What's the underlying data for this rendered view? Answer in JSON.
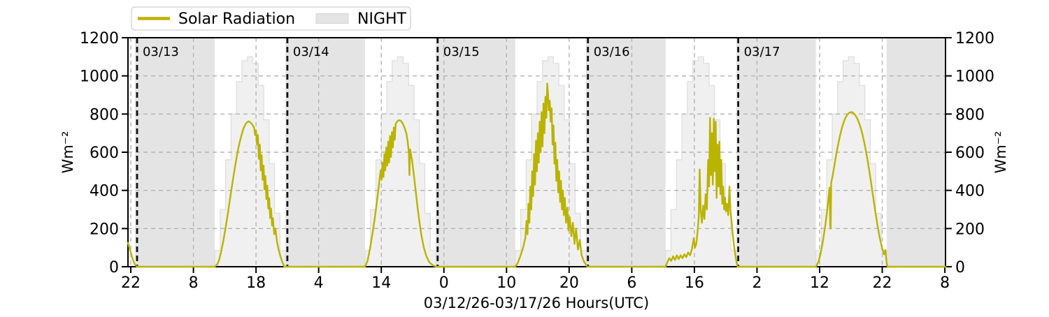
{
  "chart_data": {
    "type": "line",
    "title": "",
    "xlabel": "03/12/26-03/17/26  Hours(UTC)",
    "ylabel_left": "Wm⁻²",
    "ylabel_right": "Wm⁻²",
    "ylim": [
      0,
      1200
    ],
    "yticks": [
      0,
      200,
      400,
      600,
      800,
      1000,
      1200
    ],
    "grid": "dashed gray, both axes",
    "legend_position": "top-left above axes",
    "legend": [
      {
        "label": "Solar Radiation",
        "type": "line",
        "color": "#bab300"
      },
      {
        "label": "NIGHT",
        "type": "patch",
        "color": "#e4e4e4"
      }
    ],
    "colors": {
      "line": "#bab300",
      "night": "#e4e4e4",
      "clearsky_fill": "#f0f0f0",
      "clearsky_edge": "#dcdcdc",
      "grid": "#b3b3b3",
      "dateline": "#111111",
      "date_label": "#3d3d3d",
      "axis": "#000000"
    },
    "x_axis": {
      "unit": "hours since 03/12/26 22:00 UTC",
      "tmin": -0.45,
      "tmax": 130.1,
      "ticks": [
        {
          "t": 0,
          "label": "22"
        },
        {
          "t": 10,
          "label": "8"
        },
        {
          "t": 20,
          "label": "18"
        },
        {
          "t": 30,
          "label": "4"
        },
        {
          "t": 40,
          "label": "14"
        },
        {
          "t": 50,
          "label": "0"
        },
        {
          "t": 60,
          "label": "10"
        },
        {
          "t": 70,
          "label": "20"
        },
        {
          "t": 80,
          "label": "6"
        },
        {
          "t": 90,
          "label": "16"
        },
        {
          "t": 100,
          "label": "2"
        },
        {
          "t": 110,
          "label": "12"
        },
        {
          "t": 120,
          "label": "22"
        },
        {
          "t": 130,
          "label": "8"
        }
      ]
    },
    "night_spans_t": [
      [
        0.7,
        13.4
      ],
      [
        24.7,
        37.4
      ],
      [
        48.7,
        61.4
      ],
      [
        72.7,
        85.4
      ],
      [
        96.7,
        109.4
      ],
      [
        120.7,
        130.1
      ]
    ],
    "date_lines": [
      {
        "t": 1.0,
        "label": "03/13"
      },
      {
        "t": 25.0,
        "label": "03/14"
      },
      {
        "t": 49.0,
        "label": "03/15"
      },
      {
        "t": 73.0,
        "label": "03/16"
      },
      {
        "t": 97.0,
        "label": "03/17"
      }
    ],
    "clear_sky": {
      "note": "stepped clear-sky envelope, Wm-2, hourly steps sunrise to sunset, same each day",
      "days_t": [
        [
          13.4,
          24.7
        ],
        [
          37.4,
          48.7
        ],
        [
          61.4,
          72.7
        ],
        [
          85.4,
          96.7
        ],
        [
          109.4,
          120.7
        ]
      ],
      "values": [
        85,
        300,
        560,
        800,
        970,
        1080,
        1100,
        1065,
        950,
        770,
        540,
        280,
        85
      ]
    },
    "solar_series_t_v": [
      [
        -0.45,
        125
      ],
      [
        0,
        75
      ],
      [
        0.3,
        40
      ],
      [
        0.6,
        15
      ],
      [
        0.9,
        3
      ],
      [
        1.05,
        0
      ],
      [
        7,
        0
      ],
      [
        13.4,
        0
      ],
      [
        13.8,
        12
      ],
      [
        14.1,
        35
      ],
      [
        14.4,
        75
      ],
      [
        14.8,
        140
      ],
      [
        15.2,
        215
      ],
      [
        15.6,
        300
      ],
      [
        16,
        390
      ],
      [
        16.4,
        475
      ],
      [
        16.8,
        555
      ],
      [
        17.2,
        625
      ],
      [
        17.6,
        680
      ],
      [
        18,
        725
      ],
      [
        18.4,
        752
      ],
      [
        18.8,
        762
      ],
      [
        19.1,
        756
      ],
      [
        19.4,
        745
      ],
      [
        19.7,
        728
      ],
      [
        19.85,
        690
      ],
      [
        20,
        715
      ],
      [
        20.15,
        640
      ],
      [
        20.3,
        690
      ],
      [
        20.45,
        565
      ],
      [
        20.6,
        640
      ],
      [
        20.75,
        505
      ],
      [
        20.9,
        585
      ],
      [
        21.05,
        455
      ],
      [
        21.2,
        530
      ],
      [
        21.35,
        405
      ],
      [
        21.5,
        475
      ],
      [
        21.65,
        355
      ],
      [
        21.8,
        425
      ],
      [
        21.95,
        305
      ],
      [
        22.1,
        360
      ],
      [
        22.25,
        255
      ],
      [
        22.4,
        305
      ],
      [
        22.55,
        215
      ],
      [
        22.7,
        255
      ],
      [
        22.9,
        170
      ],
      [
        23.1,
        200
      ],
      [
        23.35,
        130
      ],
      [
        23.6,
        90
      ],
      [
        23.9,
        55
      ],
      [
        24.2,
        25
      ],
      [
        24.5,
        0
      ],
      [
        30,
        0
      ],
      [
        37.4,
        0
      ],
      [
        37.8,
        30
      ],
      [
        38.2,
        95
      ],
      [
        38.6,
        175
      ],
      [
        39,
        265
      ],
      [
        39.4,
        365
      ],
      [
        39.7,
        450
      ],
      [
        39.9,
        505
      ],
      [
        40.05,
        455
      ],
      [
        40.2,
        545
      ],
      [
        40.35,
        470
      ],
      [
        40.5,
        590
      ],
      [
        40.65,
        505
      ],
      [
        40.8,
        625
      ],
      [
        40.95,
        530
      ],
      [
        41.1,
        655
      ],
      [
        41.25,
        545
      ],
      [
        41.4,
        685
      ],
      [
        41.55,
        575
      ],
      [
        41.7,
        705
      ],
      [
        41.85,
        625
      ],
      [
        42,
        730
      ],
      [
        42.15,
        665
      ],
      [
        42.3,
        748
      ],
      [
        42.5,
        760
      ],
      [
        42.8,
        768
      ],
      [
        43.1,
        765
      ],
      [
        43.4,
        752
      ],
      [
        43.7,
        730
      ],
      [
        44,
        700
      ],
      [
        44.2,
        660
      ],
      [
        44.4,
        600
      ],
      [
        44.5,
        480
      ],
      [
        44.6,
        615
      ],
      [
        44.9,
        560
      ],
      [
        45.2,
        480
      ],
      [
        45.5,
        395
      ],
      [
        45.8,
        310
      ],
      [
        46.1,
        235
      ],
      [
        46.4,
        165
      ],
      [
        46.8,
        100
      ],
      [
        47.2,
        55
      ],
      [
        47.7,
        22
      ],
      [
        48.3,
        6
      ],
      [
        48.85,
        0
      ],
      [
        54,
        0
      ],
      [
        61.4,
        0
      ],
      [
        61.8,
        20
      ],
      [
        62.2,
        55
      ],
      [
        62.6,
        95
      ],
      [
        63,
        150
      ],
      [
        63.2,
        240
      ],
      [
        63.35,
        170
      ],
      [
        63.5,
        330
      ],
      [
        63.65,
        230
      ],
      [
        63.8,
        420
      ],
      [
        63.95,
        300
      ],
      [
        64.1,
        500
      ],
      [
        64.25,
        370
      ],
      [
        64.4,
        590
      ],
      [
        64.55,
        430
      ],
      [
        64.7,
        660
      ],
      [
        64.85,
        500
      ],
      [
        65,
        700
      ],
      [
        65.15,
        545
      ],
      [
        65.3,
        760
      ],
      [
        65.45,
        600
      ],
      [
        65.6,
        810
      ],
      [
        65.75,
        630
      ],
      [
        65.9,
        855
      ],
      [
        66.05,
        700
      ],
      [
        66.2,
        890
      ],
      [
        66.35,
        780
      ],
      [
        66.5,
        960
      ],
      [
        66.62,
        905
      ],
      [
        66.75,
        820
      ],
      [
        66.9,
        870
      ],
      [
        67.05,
        760
      ],
      [
        67.2,
        830
      ],
      [
        67.35,
        640
      ],
      [
        67.5,
        740
      ],
      [
        67.65,
        540
      ],
      [
        67.8,
        650
      ],
      [
        67.95,
        450
      ],
      [
        68.1,
        560
      ],
      [
        68.25,
        390
      ],
      [
        68.4,
        500
      ],
      [
        68.55,
        340
      ],
      [
        68.7,
        450
      ],
      [
        68.85,
        300
      ],
      [
        69,
        400
      ],
      [
        69.15,
        270
      ],
      [
        69.3,
        360
      ],
      [
        69.5,
        230
      ],
      [
        69.7,
        310
      ],
      [
        69.9,
        190
      ],
      [
        70.1,
        260
      ],
      [
        70.35,
        160
      ],
      [
        70.6,
        230
      ],
      [
        70.85,
        120
      ],
      [
        71.1,
        200
      ],
      [
        71.4,
        90
      ],
      [
        71.7,
        140
      ],
      [
        72,
        60
      ],
      [
        72.4,
        25
      ],
      [
        72.9,
        0
      ],
      [
        78,
        0
      ],
      [
        85.4,
        0
      ],
      [
        85.7,
        25
      ],
      [
        86,
        45
      ],
      [
        86.3,
        30
      ],
      [
        86.6,
        55
      ],
      [
        86.9,
        35
      ],
      [
        87.2,
        60
      ],
      [
        87.5,
        40
      ],
      [
        87.8,
        60
      ],
      [
        88.1,
        45
      ],
      [
        88.4,
        65
      ],
      [
        88.7,
        50
      ],
      [
        89,
        75
      ],
      [
        89.3,
        60
      ],
      [
        89.6,
        90
      ],
      [
        89.9,
        150
      ],
      [
        90.1,
        100
      ],
      [
        90.3,
        120
      ],
      [
        90.5,
        180
      ],
      [
        90.7,
        260
      ],
      [
        90.85,
        510
      ],
      [
        91,
        300
      ],
      [
        91.2,
        230
      ],
      [
        91.4,
        320
      ],
      [
        91.6,
        250
      ],
      [
        91.8,
        380
      ],
      [
        92,
        300
      ],
      [
        92.2,
        560
      ],
      [
        92.35,
        420
      ],
      [
        92.5,
        780
      ],
      [
        92.65,
        480
      ],
      [
        92.8,
        700
      ],
      [
        92.95,
        430
      ],
      [
        93.1,
        775
      ],
      [
        93.25,
        500
      ],
      [
        93.4,
        760
      ],
      [
        93.55,
        360
      ],
      [
        93.7,
        640
      ],
      [
        93.85,
        420
      ],
      [
        94,
        655
      ],
      [
        94.15,
        380
      ],
      [
        94.3,
        560
      ],
      [
        94.45,
        330
      ],
      [
        94.6,
        420
      ],
      [
        94.75,
        300
      ],
      [
        94.9,
        360
      ],
      [
        95.05,
        290
      ],
      [
        95.2,
        330
      ],
      [
        95.4,
        270
      ],
      [
        95.6,
        420
      ],
      [
        95.75,
        300
      ],
      [
        95.9,
        250
      ],
      [
        96.1,
        180
      ],
      [
        96.3,
        120
      ],
      [
        96.5,
        70
      ],
      [
        96.7,
        30
      ],
      [
        96.9,
        0
      ],
      [
        102,
        0
      ],
      [
        109.4,
        0
      ],
      [
        109.8,
        25
      ],
      [
        110.1,
        60
      ],
      [
        110.5,
        130
      ],
      [
        110.9,
        215
      ],
      [
        111.2,
        295
      ],
      [
        111.45,
        370
      ],
      [
        111.6,
        415
      ],
      [
        111.68,
        215
      ],
      [
        111.76,
        200
      ],
      [
        111.85,
        440
      ],
      [
        112.1,
        480
      ],
      [
        112.4,
        540
      ],
      [
        112.8,
        615
      ],
      [
        113.2,
        680
      ],
      [
        113.6,
        733
      ],
      [
        114,
        772
      ],
      [
        114.4,
        797
      ],
      [
        114.8,
        808
      ],
      [
        115.2,
        810
      ],
      [
        115.6,
        798
      ],
      [
        116,
        778
      ],
      [
        116.4,
        745
      ],
      [
        116.8,
        700
      ],
      [
        117.2,
        640
      ],
      [
        117.6,
        568
      ],
      [
        118,
        487
      ],
      [
        118.4,
        400
      ],
      [
        118.8,
        310
      ],
      [
        119.2,
        225
      ],
      [
        119.6,
        150
      ],
      [
        120,
        95
      ],
      [
        120.3,
        65
      ],
      [
        120.5,
        88
      ],
      [
        120.7,
        20
      ],
      [
        120.85,
        0
      ],
      [
        125,
        0
      ],
      [
        130.1,
        0
      ]
    ]
  }
}
